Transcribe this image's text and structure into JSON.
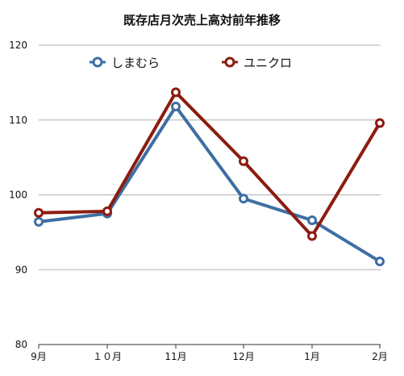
{
  "chart_data": {
    "type": "line",
    "title": "既存店月次売上高対前年推移",
    "categories": [
      "9月",
      "１０月",
      "11月",
      "12月",
      "1月",
      "2月"
    ],
    "series": [
      {
        "name": "しまむら",
        "values": [
          96.4,
          97.5,
          111.8,
          99.5,
          96.6,
          91.1
        ],
        "color": "#3e6ea4"
      },
      {
        "name": "ユニクロ",
        "values": [
          97.6,
          97.8,
          113.7,
          104.5,
          94.5,
          109.6
        ],
        "color": "#8b1c0f"
      }
    ],
    "ylim": [
      80,
      120
    ],
    "yticks": [
      80,
      90,
      100,
      110,
      120
    ],
    "grid": true,
    "legend_position": "top"
  }
}
